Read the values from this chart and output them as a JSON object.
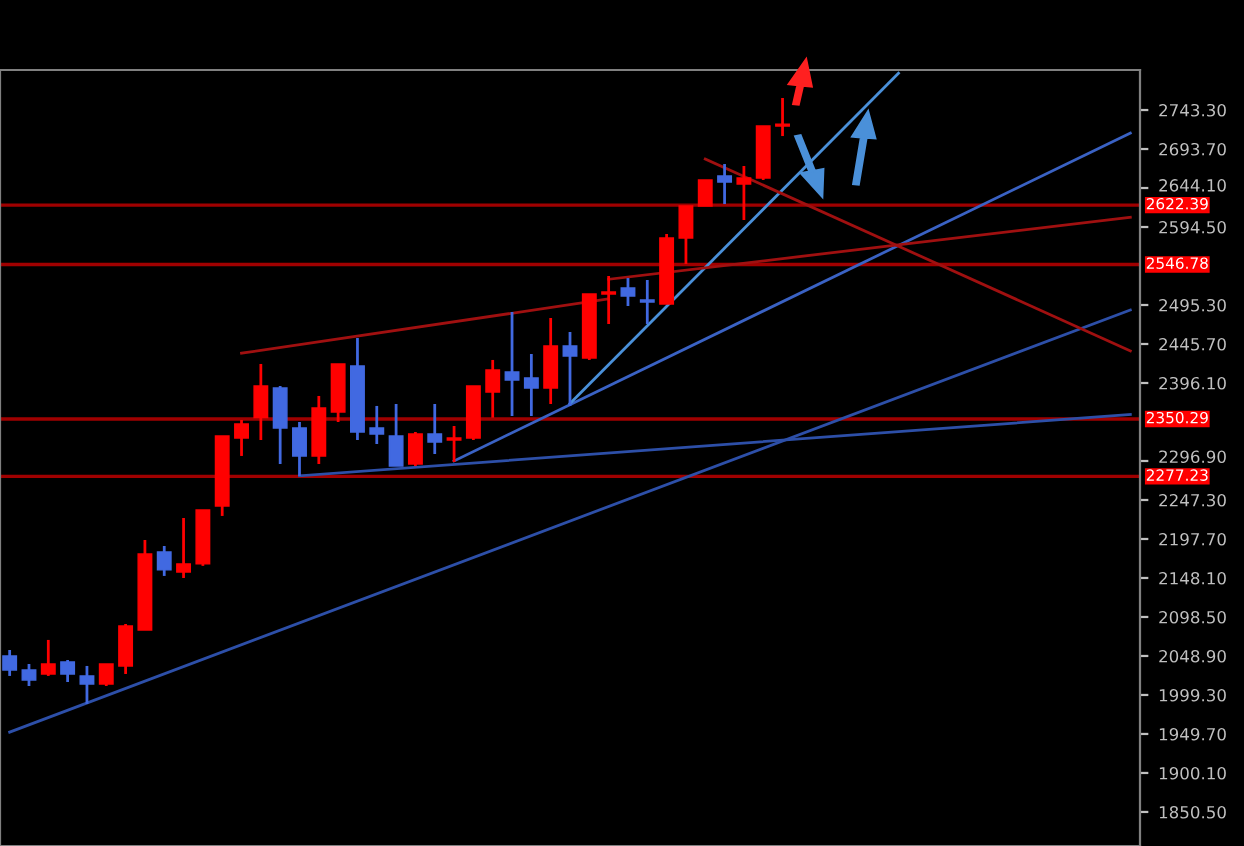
{
  "chart_data": {
    "type": "candlestick",
    "categories": [
      null,
      null,
      null,
      null,
      null,
      null,
      null,
      null,
      null,
      null,
      null,
      null,
      null,
      null,
      null,
      null,
      null,
      null,
      null,
      null,
      null,
      null,
      null,
      null,
      null,
      null,
      null,
      null,
      null,
      null,
      null,
      null,
      null,
      null,
      null,
      null,
      null,
      null,
      null,
      null,
      null,
      null,
      null,
      null,
      null,
      null,
      null,
      null,
      null,
      null,
      null,
      null,
      null,
      null,
      null,
      null,
      null,
      null,
      null
    ],
    "ohlc": [
      [
        2048.9,
        2056.5,
        2023.5,
        2031.1
      ],
      [
        2031.1,
        2038.7,
        2010.7,
        2018.4
      ],
      [
        2026.0,
        2069.3,
        2023.5,
        2038.7
      ],
      [
        2041.3,
        2043.8,
        2015.8,
        2026.0
      ],
      [
        2023.5,
        2036.2,
        1987.9,
        2013.3
      ],
      [
        2013.3,
        2038.7,
        2010.7,
        2038.7
      ],
      [
        2036.2,
        2089.6,
        2026.0,
        2087.0
      ],
      [
        2082.0,
        2196.4,
        2082.0,
        2178.6
      ],
      [
        2181.2,
        2188.8,
        2150.7,
        2158.4
      ],
      [
        2155.7,
        2224.4,
        2148.1,
        2166.0
      ],
      [
        2166.0,
        2234.6,
        2163.5,
        2234.6
      ],
      [
        2239.7,
        2328.7,
        2227.0,
        2328.7
      ],
      [
        2326.1,
        2349.0,
        2303.3,
        2344.0
      ],
      [
        2352.0,
        2420.3,
        2323.6,
        2392.3
      ],
      [
        2389.7,
        2392.3,
        2293.1,
        2338.9
      ],
      [
        2338.9,
        2346.5,
        2277.8,
        2303.3
      ],
      [
        2303.3,
        2379.6,
        2293.1,
        2364.3
      ],
      [
        2359.2,
        2420.3,
        2346.5,
        2420.3
      ],
      [
        2417.7,
        2453.3,
        2323.6,
        2333.8
      ],
      [
        2338.9,
        2366.9,
        2318.5,
        2331.2
      ],
      [
        2328.7,
        2369.4,
        2290.5,
        2290.5
      ],
      [
        2293.1,
        2333.8,
        2290.5,
        2331.2
      ],
      [
        2331.2,
        2369.4,
        2305.8,
        2321.1
      ],
      [
        2323.6,
        2341.4,
        2295.6,
        2326.1
      ],
      [
        2326.1,
        2392.3,
        2323.6,
        2392.3
      ],
      [
        2384.6,
        2425.4,
        2352.0,
        2412.6
      ],
      [
        2410.1,
        2486.4,
        2354.1,
        2399.9
      ],
      [
        2402.5,
        2433.0,
        2354.1,
        2389.7
      ],
      [
        2389.7,
        2478.8,
        2369.4,
        2443.2
      ],
      [
        2443.2,
        2461.0,
        2366.9,
        2430.4
      ],
      [
        2427.9,
        2509.3,
        2425.4,
        2509.3
      ],
      [
        2509.3,
        2532.2,
        2471.1,
        2511.8
      ],
      [
        2516.9,
        2529.6,
        2494.0,
        2506.7
      ],
      [
        2501.6,
        2527.1,
        2471.1,
        2499.1
      ],
      [
        2496.6,
        2585.6,
        2496.6,
        2580.5
      ],
      [
        2580.5,
        2621.2,
        2547.4,
        2621.2
      ],
      [
        2621.2,
        2654.3,
        2621.2,
        2654.3
      ],
      [
        2659.4,
        2674.6,
        2623.7,
        2651.7
      ],
      [
        2649.2,
        2672.1,
        2603.4,
        2656.8
      ],
      [
        2656.8,
        2722.9,
        2654.3,
        2722.9
      ],
      [
        2722.9,
        2758.6,
        2710.2,
        2725.4
      ],
      null,
      null,
      null,
      null,
      null,
      null,
      null,
      null,
      null,
      null,
      null,
      null,
      null,
      null,
      null,
      null,
      null,
      null
    ],
    "colors": [
      "#4169e1",
      "#4169e1",
      "#ff0000",
      "#4169e1",
      "#4169e1",
      "#ff0000",
      "#ff0000",
      "#ff0000",
      "#4169e1",
      "#ff0000",
      "#ff0000",
      "#ff0000",
      "#ff0000",
      "#ff0000",
      "#4169e1",
      "#4169e1",
      "#ff0000",
      "#ff0000",
      "#4169e1",
      "#4169e1",
      "#4169e1",
      "#ff0000",
      "#4169e1",
      "#ff0000",
      "#ff0000",
      "#ff0000",
      "#4169e1",
      "#4169e1",
      "#ff0000",
      "#4169e1",
      "#ff0000",
      "#ff0000",
      "#4169e1",
      "#4169e1",
      "#ff0000",
      "#ff0000",
      "#ff0000",
      "#4169e1",
      "#ff0000",
      "#ff0000",
      "#ff0000",
      null,
      null,
      null,
      null,
      null,
      null,
      null,
      null,
      null,
      null,
      null,
      null,
      null,
      null,
      null,
      null,
      null,
      null
    ],
    "series": [
      {
        "type": "line",
        "color": "#2d4fa8",
        "values": [
          1952,
          null,
          null,
          null,
          null,
          null,
          null,
          null,
          null,
          null,
          null,
          null,
          null,
          null,
          null,
          null,
          null,
          null,
          null,
          null,
          null,
          null,
          null,
          null,
          null,
          null,
          null,
          null,
          null,
          null,
          null,
          null,
          null,
          null,
          null,
          null,
          null,
          null,
          null,
          null,
          null,
          null,
          null,
          null,
          null,
          null,
          null,
          null,
          null,
          null,
          null,
          null,
          null,
          null,
          null,
          null,
          null,
          null,
          2489
        ]
      },
      {
        "type": "line",
        "color": "#2d4fa8",
        "values": [
          null,
          null,
          null,
          null,
          null,
          null,
          null,
          null,
          null,
          null,
          null,
          null,
          null,
          null,
          null,
          2278,
          null,
          null,
          null,
          null,
          null,
          null,
          null,
          null,
          null,
          null,
          null,
          null,
          null,
          null,
          null,
          null,
          null,
          null,
          null,
          null,
          null,
          null,
          null,
          null,
          null,
          null,
          null,
          null,
          null,
          null,
          null,
          null,
          null,
          null,
          null,
          null,
          null,
          null,
          null,
          null,
          null,
          null,
          2356
        ]
      },
      {
        "type": "line",
        "color": "#3a62c4",
        "values": [
          null,
          null,
          null,
          null,
          null,
          null,
          null,
          null,
          null,
          null,
          null,
          null,
          null,
          null,
          null,
          null,
          null,
          null,
          null,
          null,
          null,
          null,
          null,
          2297,
          null,
          null,
          null,
          null,
          null,
          null,
          null,
          null,
          null,
          null,
          null,
          null,
          null,
          null,
          null,
          null,
          null,
          null,
          null,
          null,
          null,
          null,
          null,
          null,
          null,
          null,
          null,
          null,
          null,
          null,
          null,
          null,
          null,
          null,
          2714
        ]
      },
      {
        "type": "line",
        "color": "#4a90d9",
        "values": [
          null,
          null,
          null,
          null,
          null,
          null,
          null,
          null,
          null,
          null,
          null,
          null,
          null,
          null,
          null,
          null,
          null,
          null,
          null,
          null,
          null,
          null,
          null,
          null,
          null,
          null,
          null,
          null,
          null,
          2370,
          null,
          null,
          null,
          null,
          null,
          null,
          null,
          null,
          null,
          null,
          null,
          null,
          null,
          null,
          null,
          null,
          2790,
          null,
          null,
          null,
          null,
          null,
          null,
          null,
          null,
          null,
          null,
          null,
          null
        ]
      },
      {
        "type": "line",
        "color": "#a01010",
        "values": [
          null,
          null,
          null,
          null,
          null,
          null,
          null,
          null,
          null,
          null,
          null,
          null,
          2434,
          null,
          null,
          null,
          null,
          null,
          null,
          null,
          null,
          null,
          null,
          null,
          null,
          null,
          null,
          null,
          null,
          null,
          null,
          2503,
          null,
          null,
          null,
          null,
          null,
          null,
          null,
          null,
          null,
          null,
          null,
          null,
          null,
          null,
          null,
          null,
          null,
          null,
          null,
          null,
          null,
          null,
          null,
          null,
          null,
          null,
          null
        ]
      },
      {
        "type": "line",
        "color": "#a01010",
        "values": [
          null,
          null,
          null,
          null,
          null,
          null,
          null,
          null,
          null,
          null,
          null,
          null,
          null,
          null,
          null,
          null,
          null,
          null,
          null,
          null,
          null,
          null,
          null,
          null,
          null,
          null,
          null,
          null,
          null,
          null,
          null,
          null,
          null,
          null,
          null,
          null,
          2681,
          null,
          null,
          null,
          null,
          null,
          null,
          null,
          null,
          null,
          null,
          null,
          null,
          null,
          null,
          null,
          null,
          null,
          null,
          null,
          null,
          null,
          2437
        ]
      },
      {
        "type": "line",
        "color": "#a01010",
        "values": [
          null,
          null,
          null,
          null,
          null,
          null,
          null,
          null,
          null,
          null,
          null,
          null,
          null,
          null,
          null,
          null,
          null,
          null,
          null,
          null,
          null,
          null,
          null,
          null,
          null,
          null,
          null,
          null,
          null,
          null,
          null,
          2528,
          null,
          null,
          null,
          null,
          null,
          null,
          null,
          null,
          null,
          null,
          null,
          null,
          null,
          null,
          null,
          null,
          null,
          null,
          null,
          null,
          null,
          null,
          null,
          null,
          null,
          null,
          2607
        ]
      }
    ],
    "ref_lines": [
      {
        "axis": "y",
        "value": 2622.39,
        "label": "2622.39",
        "color": "#a00000"
      },
      {
        "axis": "y",
        "value": 2546.78,
        "label": "2546.78",
        "color": "#a00000"
      },
      {
        "axis": "y",
        "value": 2350.29,
        "label": "2350.29",
        "color": "#a00000"
      },
      {
        "axis": "y",
        "value": 2277.23,
        "label": "2277.23",
        "color": "#a00000"
      }
    ],
    "ylim": [
      1807.2,
      2794.2
    ],
    "yticks": [
      {
        "value": 2743.3,
        "label": "2743.30"
      },
      {
        "value": 2693.7,
        "label": "2693.70"
      },
      {
        "value": 2644.1,
        "label": "2644.10"
      },
      {
        "value": 2594.5,
        "label": "2594.50"
      },
      {
        "value": 2495.3,
        "label": "2495.30"
      },
      {
        "value": 2445.7,
        "label": "2445.70"
      },
      {
        "value": 2396.1,
        "label": "2396.10"
      },
      {
        "value": 2296.9,
        "label": "2296.90"
      },
      {
        "value": 2247.3,
        "label": "2247.30"
      },
      {
        "value": 2197.7,
        "label": "2197.70"
      },
      {
        "value": 2148.1,
        "label": "2148.10"
      },
      {
        "value": 2098.5,
        "label": "2098.50"
      },
      {
        "value": 2048.9,
        "label": "2048.90"
      },
      {
        "value": 1999.3,
        "label": "1999.30"
      },
      {
        "value": 1949.7,
        "label": "1949.70"
      },
      {
        "value": 1900.1,
        "label": "1900.10"
      },
      {
        "value": 1850.5,
        "label": "1850.50"
      }
    ],
    "tick_labels": "y",
    "grid": false,
    "legend": false
  }
}
